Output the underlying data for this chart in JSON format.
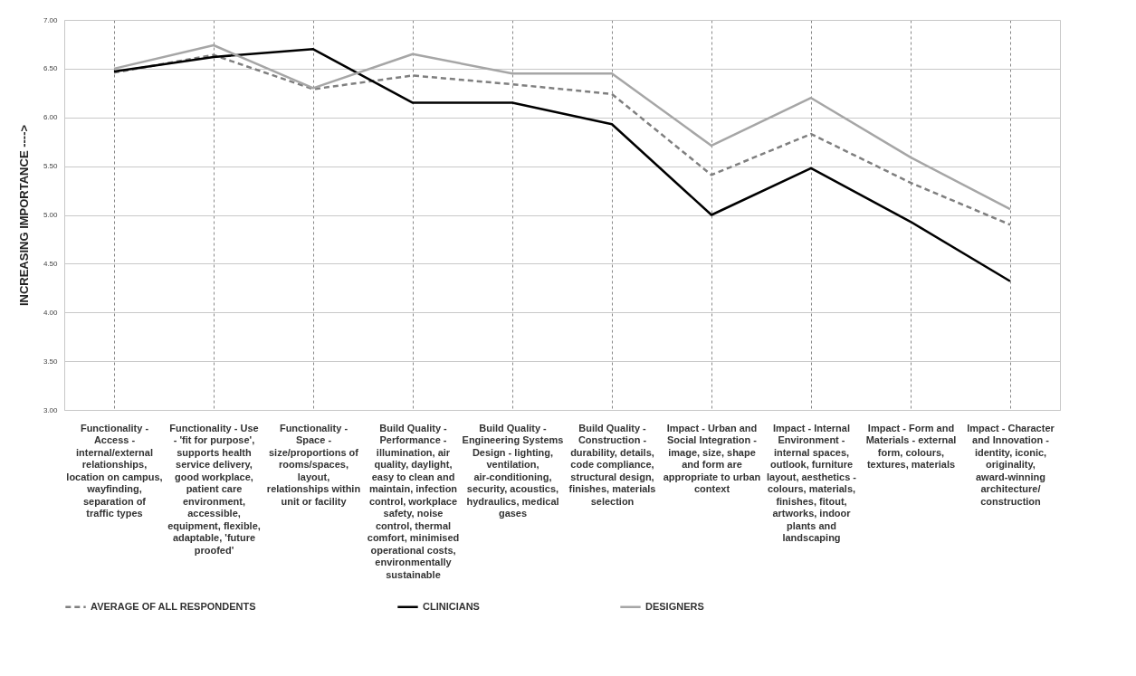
{
  "chart_data": {
    "type": "line",
    "ylabel": "INCREASING IMPORTANCE ---->",
    "categories": [
      "Functionality - Access - internal/external relationships, location on campus, wayfinding, separation of traffic types",
      "Functionality - Use - 'fit for purpose', supports health service delivery, good workplace, patient care environment, accessible, equipment, flexible, adaptable, 'future proofed'",
      "Functionality - Space - size/proportions of rooms/spaces, layout, relationships within unit or facility",
      "Build Quality - Performance - illumination, air quality, daylight, easy to clean and maintain, infection control, workplace safety, noise control, thermal comfort, minimised operational costs, environmentally sustainable",
      "Build Quality - Engineering Systems Design - lighting, ventilation, air-conditioning, security, acoustics, hydraulics, medical gases",
      "Build Quality - Construction - durability, details, code compliance, structural design, finishes, materials selection",
      "Impact - Urban and Social Integration - image, size, shape and form are appropriate to urban context",
      "Impact - Internal Environment - internal spaces, outlook, furniture layout, aesthetics - colours, materials, finishes, fitout, artworks, indoor plants and landscaping",
      "Impact - Form and Materials - external form, colours, textures, materials",
      "Impact - Character and Innovation - identity, iconic, originality, award-winning architecture/ construction"
    ],
    "series": [
      {
        "name": "AVERAGE OF ALL RESPONDENTS",
        "color": "#7f7f7f",
        "line_style": "dashed",
        "values": [
          6.46,
          6.64,
          6.29,
          6.43,
          6.34,
          6.24,
          5.41,
          5.83,
          5.33,
          4.9
        ]
      },
      {
        "name": "CLINICIANS",
        "color": "#000000",
        "line_style": "solid",
        "values": [
          6.47,
          6.62,
          6.7,
          6.15,
          6.15,
          5.93,
          5.0,
          5.48,
          4.93,
          4.32
        ]
      },
      {
        "name": "DESIGNERS",
        "color": "#a6a6a6",
        "line_style": "solid",
        "values": [
          6.5,
          6.74,
          6.3,
          6.65,
          6.45,
          6.45,
          5.71,
          6.2,
          5.59,
          5.06
        ]
      }
    ],
    "ylim": [
      3,
      7
    ],
    "yticks": [
      {
        "value": 3,
        "label": "3.00"
      },
      {
        "value": 3.5,
        "label": "3.50"
      },
      {
        "value": 4,
        "label": "4.00"
      },
      {
        "value": 4.5,
        "label": "4.50"
      },
      {
        "value": 5,
        "label": "5.00"
      },
      {
        "value": 5.5,
        "label": "5.50"
      },
      {
        "value": 6,
        "label": "6.00"
      },
      {
        "value": 6.5,
        "label": "6.50"
      },
      {
        "value": 7,
        "label": "7.00"
      }
    ],
    "grid": true,
    "legend": "bottom",
    "marker": "none"
  }
}
